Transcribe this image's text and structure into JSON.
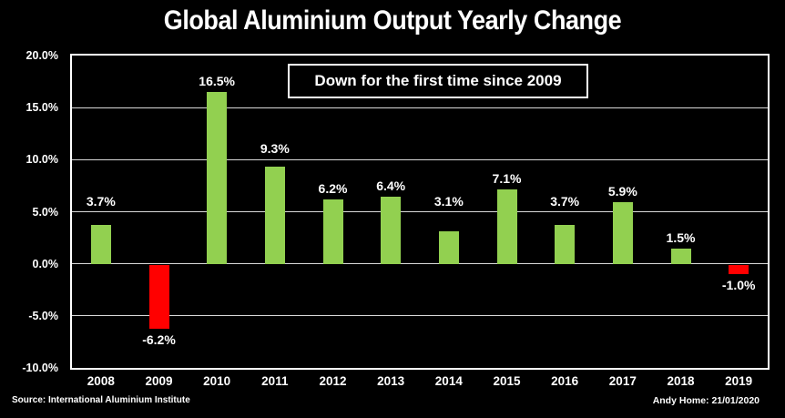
{
  "title": "Global Aluminium Output Yearly Change",
  "annotation": "Down for the first time since 2009",
  "footer": {
    "source": "Source: International Aluminium Institute",
    "credit": "Andy Home: 21/01/2020"
  },
  "chart_data": {
    "type": "bar",
    "title": "Global Aluminium Output Yearly Change",
    "annotation": "Down for the first time since 2009",
    "categories": [
      "2008",
      "2009",
      "2010",
      "2011",
      "2012",
      "2013",
      "2014",
      "2015",
      "2016",
      "2017",
      "2018",
      "2019"
    ],
    "values": [
      3.7,
      -6.2,
      16.5,
      9.3,
      6.2,
      6.4,
      3.1,
      7.1,
      3.7,
      5.9,
      1.5,
      -1.0
    ],
    "bar_labels": [
      "3.7%",
      "-6.2%",
      "16.5%",
      "9.3%",
      "6.2%",
      "6.4%",
      "3.1%",
      "7.1%",
      "3.7%",
      "5.9%",
      "1.5%",
      "-1.0%"
    ],
    "xlabel": "",
    "ylabel": "",
    "ylim": [
      -10,
      20
    ],
    "yticks": [
      20,
      15,
      10,
      5,
      0,
      -5,
      -10
    ],
    "ytick_labels": [
      "20.0%",
      "15.0%",
      "10.0%",
      "5.0%",
      "0.0%",
      "-5.0%",
      "-10.0%"
    ],
    "grid": true,
    "legend": false,
    "colors": {
      "positive": "#92D050",
      "negative": "#FF0000",
      "background": "#000000",
      "text": "#FFFFFF",
      "gridline": "#D9D9D9"
    }
  }
}
